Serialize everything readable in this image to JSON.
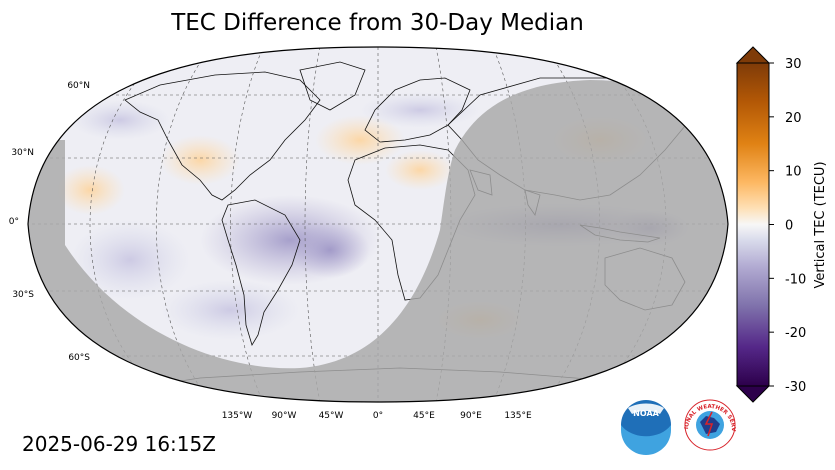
{
  "title": "TEC Difference from 30-Day Median",
  "timestamp": "2025-06-29 16:15Z",
  "map": {
    "projection": "robinson",
    "gridlines": true,
    "lat_labels": [
      "60°N",
      "30°N",
      "0°",
      "30°S",
      "60°S"
    ],
    "lon_labels": [
      "135°W",
      "90°W",
      "45°W",
      "0°",
      "45°E",
      "90°E",
      "135°E"
    ],
    "night_shade_color": "#a8a8a8",
    "ocean_color": "#eeeef4"
  },
  "colorbar": {
    "label": "Vertical TEC (TECU)",
    "min": -30,
    "max": 30,
    "ticks": [
      "30",
      "20",
      "10",
      "0",
      "-10",
      "-20",
      "-30"
    ],
    "colormap": "PuOr_r",
    "extend": "both"
  },
  "logos": {
    "noaa": {
      "text": "NOAA",
      "color": "#1f6fb8"
    },
    "nws": {
      "text": "NATIONAL WEATHER SERVICE",
      "color": "#d8232a"
    }
  }
}
